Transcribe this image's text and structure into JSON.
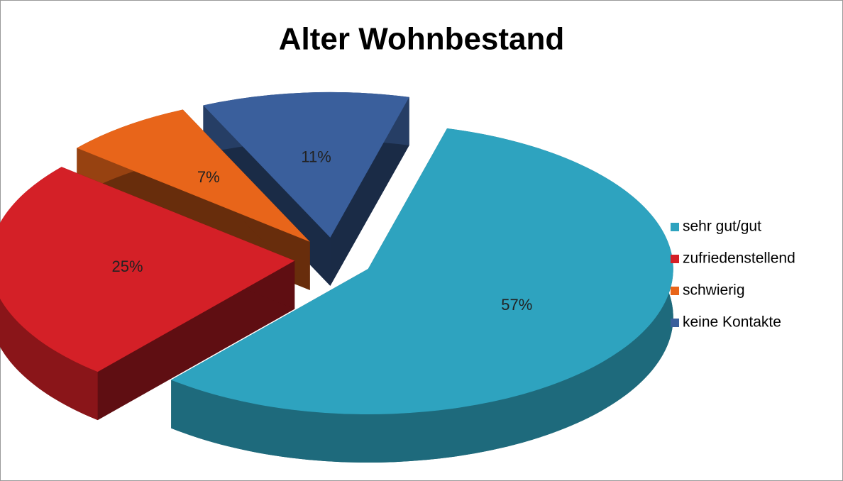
{
  "chart_data": {
    "type": "pie",
    "title": "Alter Wohnbestand",
    "categories": [
      "sehr gut/gut",
      "zufriedenstellend",
      "schwierig",
      "keine Kontakte"
    ],
    "values": [
      57,
      25,
      7,
      11
    ],
    "value_labels": [
      "57%",
      "25%",
      "7%",
      "11%"
    ],
    "colors": [
      "#2ea3bf",
      "#d42027",
      "#e8651a",
      "#3a5f9c"
    ],
    "legend": "right"
  }
}
